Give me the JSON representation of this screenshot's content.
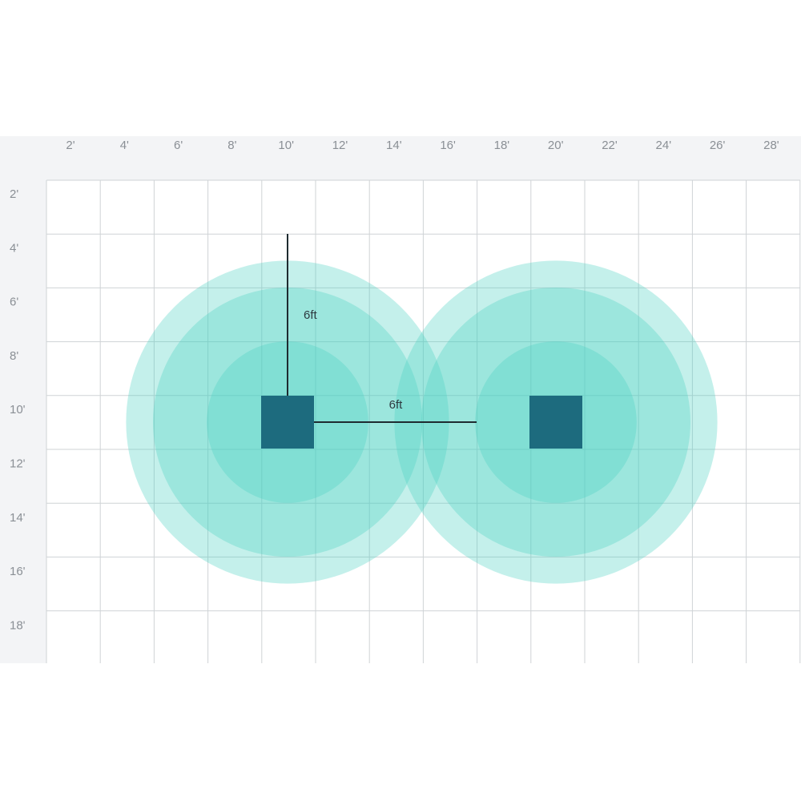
{
  "grid": {
    "x_ticks": [
      "2'",
      "4'",
      "6'",
      "8'",
      "10'",
      "12'",
      "14'",
      "16'",
      "18'",
      "20'",
      "22'",
      "24'",
      "26'",
      "28'"
    ],
    "y_ticks": [
      "2'",
      "4'",
      "6'",
      "8'",
      "10'",
      "12'",
      "14'",
      "16'",
      "18'"
    ],
    "unit": "ft"
  },
  "colors": {
    "band_background": "#f3f4f6",
    "grid_line": "#cfd3d6",
    "ring_fill": "#46cfc2",
    "device_fill": "#1d6b7e",
    "dimension_line": "#1e2b30"
  },
  "devices": [
    {
      "name": "device-left",
      "center_ft": [
        10,
        10.5
      ],
      "size_ft": 2
    },
    {
      "name": "device-right",
      "center_ft": [
        20,
        10.5
      ],
      "size_ft": 2
    }
  ],
  "coverage_rings_radius_ft": [
    6,
    5,
    3
  ],
  "dimensions": {
    "vertical": {
      "label": "6ft"
    },
    "horizontal": {
      "label": "6ft"
    }
  }
}
